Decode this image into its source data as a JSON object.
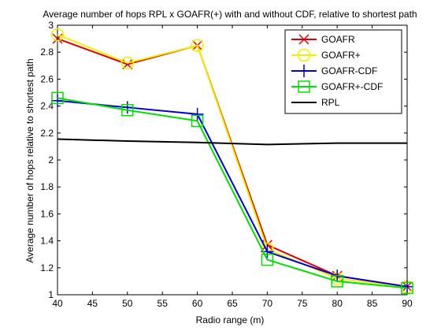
{
  "chart_data": {
    "type": "line",
    "title": "Average number of hops RPL x GOAFR(+) with and without CDF, relative to shortest path",
    "xlabel": "Radio range (m)",
    "ylabel": "Average number of hops relative to shortest path",
    "xlim": [
      40,
      90
    ],
    "ylim": [
      1,
      3
    ],
    "xticks": [
      "40",
      "45",
      "50",
      "55",
      "60",
      "65",
      "70",
      "75",
      "80",
      "85",
      "90"
    ],
    "yticks": [
      "1",
      "1.2",
      "1.4",
      "1.6",
      "1.8",
      "2",
      "2.2",
      "2.4",
      "2.6",
      "2.8",
      "3"
    ],
    "grid": false,
    "legend_position": "top-right",
    "series": [
      {
        "name": "GOAFR",
        "color": "#e00000",
        "marker": "x",
        "x": [
          40,
          50,
          60,
          70,
          80,
          90
        ],
        "values": [
          2.9,
          2.71,
          2.85,
          1.37,
          1.14,
          1.06
        ]
      },
      {
        "name": "GOAFR+",
        "color": "#f2f200",
        "marker": "circle",
        "x": [
          40,
          50,
          60,
          70,
          80,
          90
        ],
        "values": [
          2.93,
          2.72,
          2.85,
          1.34,
          1.12,
          1.06
        ]
      },
      {
        "name": "GOAFR-CDF",
        "color": "#0000dd",
        "marker": "plus",
        "x": [
          40,
          50,
          60,
          70,
          80,
          90
        ],
        "values": [
          2.44,
          2.39,
          2.34,
          1.32,
          1.14,
          1.06
        ]
      },
      {
        "name": "GOAFR+-CDF",
        "color": "#00e000",
        "marker": "square",
        "x": [
          40,
          50,
          60,
          70,
          80,
          90
        ],
        "values": [
          2.46,
          2.37,
          2.29,
          1.26,
          1.1,
          1.05
        ]
      },
      {
        "name": "RPL",
        "color": "#000000",
        "marker": "none",
        "x": [
          40,
          50,
          60,
          70,
          80,
          90
        ],
        "values": [
          2.155,
          2.14,
          2.13,
          2.115,
          2.125,
          2.125
        ]
      }
    ]
  }
}
